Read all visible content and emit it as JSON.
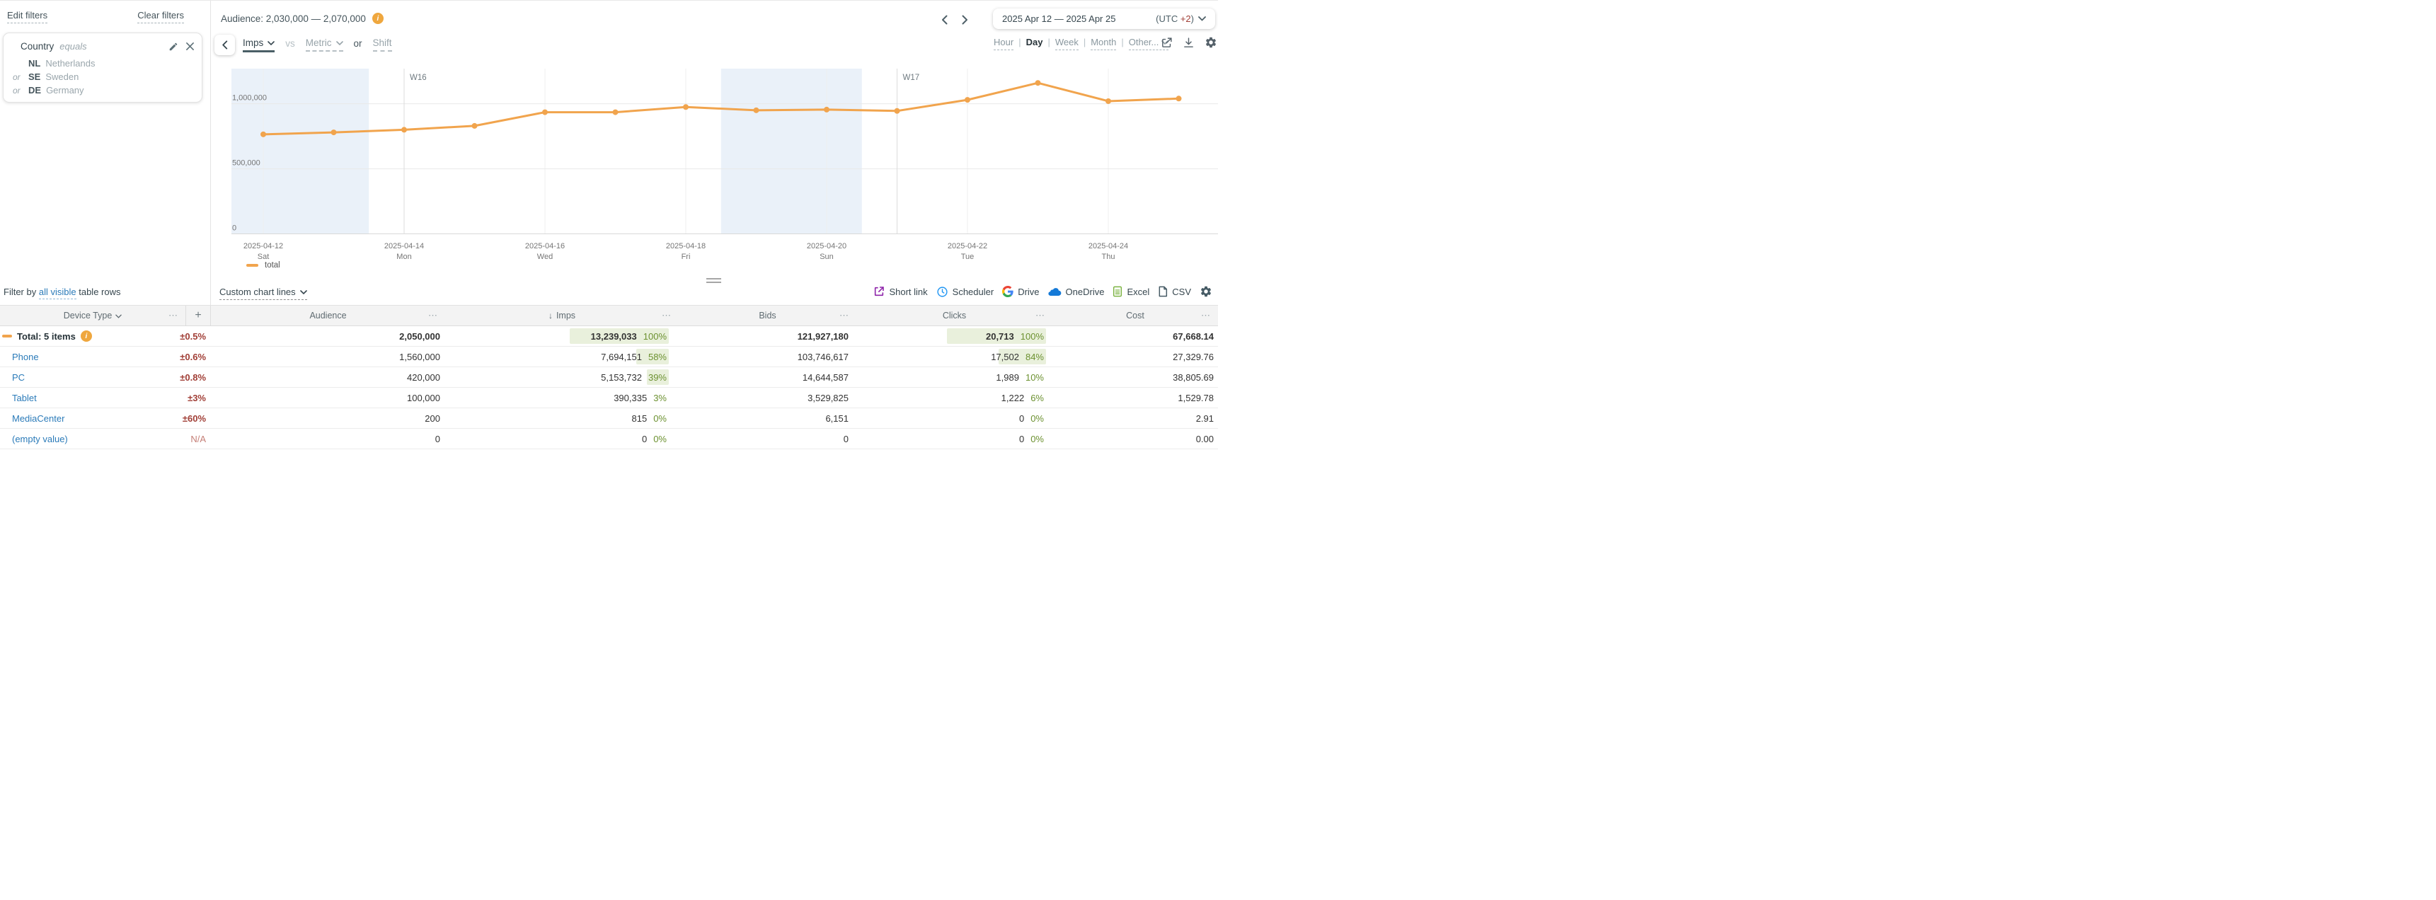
{
  "colors": {
    "accent_orange": "#f1a44d",
    "link_blue": "#2b7bb9",
    "error_red": "#a13f37",
    "error_na": "#c57f77",
    "pct_green": "#6c9130",
    "pct_bar_bg": "#e9f0dc",
    "weekend_band": "#eaf1f9",
    "info_icon_bg": "#efa73e",
    "utc_offset_red": "#a13f37"
  },
  "icons": {
    "column_menu": "⋯",
    "plus": "+",
    "info": "i",
    "sort_desc": "↓"
  },
  "filters_panel": {
    "edit_label": "Edit filters",
    "clear_label": "Clear filters",
    "filter": {
      "field": "Country",
      "operator": "equals",
      "values": [
        {
          "prefix": "",
          "code": "NL",
          "name": "Netherlands"
        },
        {
          "prefix": "or",
          "code": "SE",
          "name": "Sweden"
        },
        {
          "prefix": "or",
          "code": "DE",
          "name": "Germany"
        }
      ]
    }
  },
  "header": {
    "audience_label": "Audience: 2,030,000 — 2,070,000",
    "date_range": "2025 Apr 12 — 2025 Apr 25",
    "utc_label": "(UTC",
    "utc_value": "+2",
    "utc_close": ")"
  },
  "chart_controls": {
    "metric": "Imps",
    "vs_label": "vs",
    "compare_metric": "Metric",
    "or_label": "or",
    "shift_label": "Shift",
    "granularity": [
      "Hour",
      "Day",
      "Week",
      "Month",
      "Other..."
    ],
    "granularity_active": "Day"
  },
  "chart_data": {
    "type": "line",
    "title": "",
    "xlabel": "",
    "ylabel": "",
    "x": [
      "2025-04-12",
      "2025-04-13",
      "2025-04-14",
      "2025-04-15",
      "2025-04-16",
      "2025-04-17",
      "2025-04-18",
      "2025-04-19",
      "2025-04-20",
      "2025-04-21",
      "2025-04-22",
      "2025-04-23",
      "2025-04-24",
      "2025-04-25"
    ],
    "series": [
      {
        "name": "total",
        "color": "#f1a44d",
        "values": [
          765000,
          780000,
          800000,
          830000,
          935000,
          935000,
          975000,
          950000,
          955000,
          945000,
          1030000,
          1160000,
          1020000,
          1040000
        ]
      }
    ],
    "x_ticks": [
      {
        "date": "2025-04-12",
        "weekday": "Sat"
      },
      {
        "date": "2025-04-14",
        "weekday": "Mon"
      },
      {
        "date": "2025-04-16",
        "weekday": "Wed"
      },
      {
        "date": "2025-04-18",
        "weekday": "Fri"
      },
      {
        "date": "2025-04-20",
        "weekday": "Sun"
      },
      {
        "date": "2025-04-22",
        "weekday": "Tue"
      },
      {
        "date": "2025-04-24",
        "weekday": "Thu"
      }
    ],
    "y_ticks": [
      0,
      500000,
      1000000
    ],
    "y_tick_labels": [
      "0",
      "500,000",
      "1,000,000"
    ],
    "ylim": [
      0,
      1270000
    ],
    "week_markers": [
      {
        "label": "W16",
        "date": "2025-04-14"
      },
      {
        "label": "W17",
        "date": "2025-04-21"
      }
    ],
    "weekend_bands": [
      [
        "2025-04-12",
        "2025-04-13"
      ],
      [
        "2025-04-19",
        "2025-04-20"
      ]
    ],
    "legend": [
      "total"
    ],
    "legend_position": "bottom-left",
    "grid": true
  },
  "toolbar": {
    "filter_by_prefix": "Filter by",
    "filter_by_link": "all visible",
    "filter_by_suffix": "table rows",
    "custom_chart_lines": "Custom chart lines",
    "export_items": [
      "Short link",
      "Scheduler",
      "Drive",
      "OneDrive",
      "Excel",
      "CSV"
    ]
  },
  "table": {
    "columns": [
      "Device Type",
      "Audience",
      "Imps",
      "Bids",
      "Clicks",
      "Cost"
    ],
    "sort": {
      "column": "Imps",
      "direction": "desc"
    },
    "rows": [
      {
        "name": "Total: 5 items",
        "kind": "total",
        "error": "±0.5%",
        "audience": "2,050,000",
        "imps": "13,239,033",
        "imps_pct": "100%",
        "bids": "121,927,180",
        "clicks": "20,713",
        "clicks_pct": "100%",
        "cost": "67,668.14"
      },
      {
        "name": "Phone",
        "kind": "link",
        "error": "±0.6%",
        "audience": "1,560,000",
        "imps": "7,694,151",
        "imps_pct": "58%",
        "bids": "103,746,617",
        "clicks": "17,502",
        "clicks_pct": "84%",
        "cost": "27,329.76"
      },
      {
        "name": "PC",
        "kind": "link",
        "error": "±0.8%",
        "audience": "420,000",
        "imps": "5,153,732",
        "imps_pct": "39%",
        "bids": "14,644,587",
        "clicks": "1,989",
        "clicks_pct": "10%",
        "cost": "38,805.69"
      },
      {
        "name": "Tablet",
        "kind": "link",
        "error": "±3%",
        "audience": "100,000",
        "imps": "390,335",
        "imps_pct": "3%",
        "bids": "3,529,825",
        "clicks": "1,222",
        "clicks_pct": "6%",
        "cost": "1,529.78"
      },
      {
        "name": "MediaCenter",
        "kind": "link",
        "error": "±60%",
        "audience": "200",
        "imps": "815",
        "imps_pct": "0%",
        "bids": "6,151",
        "clicks": "0",
        "clicks_pct": "0%",
        "cost": "2.91"
      },
      {
        "name": "(empty value)",
        "kind": "link",
        "error": "N/A",
        "error_na": true,
        "audience": "0",
        "imps": "0",
        "imps_pct": "0%",
        "bids": "0",
        "clicks": "0",
        "clicks_pct": "0%",
        "cost": "0.00"
      }
    ]
  }
}
